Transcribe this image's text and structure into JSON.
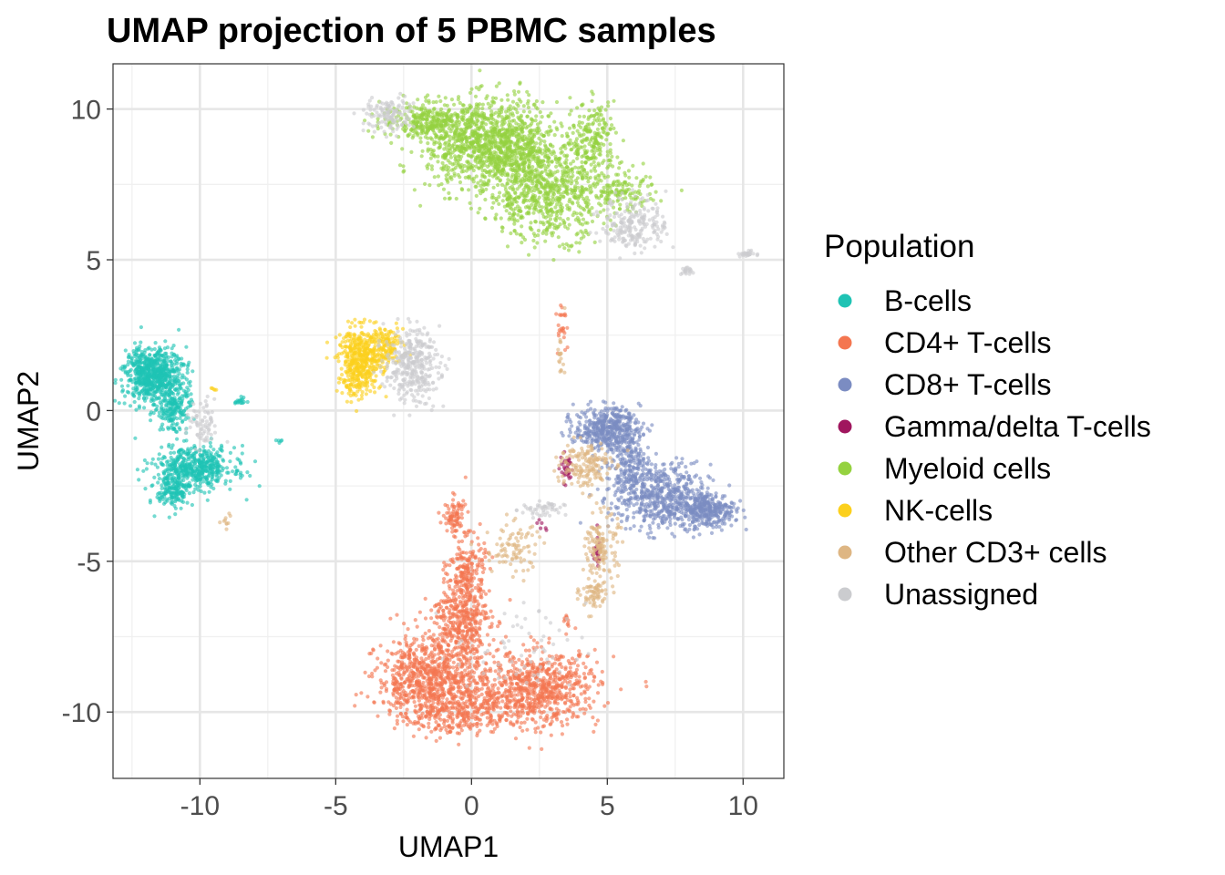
{
  "chart_data": {
    "type": "scatter",
    "title": "UMAP projection of 5 PBMC samples",
    "xlabel": "UMAP1",
    "ylabel": "UMAP2",
    "xlim": [
      -13.2,
      11.5
    ],
    "ylim": [
      -12.2,
      11.5
    ],
    "x_ticks": [
      -10,
      -5,
      0,
      5,
      10
    ],
    "y_ticks": [
      10,
      5,
      0,
      -5,
      -10
    ],
    "x_tick_labels": [
      "-10",
      "-5",
      "0",
      "5",
      "10"
    ],
    "y_tick_labels": [
      "10",
      "5",
      "0",
      "-5",
      "-10"
    ],
    "grid": true,
    "legend": {
      "title": "Population",
      "placement": "right",
      "entries": [
        {
          "name": "B-cells",
          "color": "#1fc3b4"
        },
        {
          "name": "CD4+ T-cells",
          "color": "#f47650"
        },
        {
          "name": "CD8+ T-cells",
          "color": "#7b8cc2"
        },
        {
          "name": "Gamma/delta T-cells",
          "color": "#a0165e"
        },
        {
          "name": "Myeloid cells",
          "color": "#95d240"
        },
        {
          "name": "NK-cells",
          "color": "#fcd01d"
        },
        {
          "name": "Other CD3+ cells",
          "color": "#deb683"
        },
        {
          "name": "Unassigned",
          "color": "#cbcccf"
        }
      ]
    },
    "series": [
      {
        "name": "B-cells",
        "color": "#1fc3b4",
        "clusters": [
          {
            "cx": -11.7,
            "cy": 1.2,
            "sx": 0.55,
            "sy": 0.45,
            "n": 700
          },
          {
            "cx": -11.0,
            "cy": 0.1,
            "sx": 0.3,
            "sy": 0.4,
            "n": 200
          },
          {
            "cx": -10.2,
            "cy": -1.9,
            "sx": 0.75,
            "sy": 0.35,
            "n": 500
          },
          {
            "cx": -11.0,
            "cy": -2.7,
            "sx": 0.3,
            "sy": 0.3,
            "n": 150
          },
          {
            "cx": -8.5,
            "cy": 0.3,
            "sx": 0.1,
            "sy": 0.06,
            "n": 18
          },
          {
            "cx": -7.1,
            "cy": -1.0,
            "sx": 0.06,
            "sy": 0.03,
            "n": 5
          }
        ]
      },
      {
        "name": "CD4+ T-cells",
        "color": "#f47650",
        "clusters": [
          {
            "cx": -1.5,
            "cy": -8.9,
            "sx": 1.0,
            "sy": 0.7,
            "n": 800
          },
          {
            "cx": 2.5,
            "cy": -9.2,
            "sx": 1.1,
            "sy": 0.6,
            "n": 700
          },
          {
            "cx": 0.0,
            "cy": -9.9,
            "sx": 1.4,
            "sy": 0.4,
            "n": 350
          },
          {
            "cx": -0.4,
            "cy": -7.0,
            "sx": 0.55,
            "sy": 0.6,
            "n": 350
          },
          {
            "cx": -0.2,
            "cy": -5.4,
            "sx": 0.35,
            "sy": 0.6,
            "n": 220
          },
          {
            "cx": -0.6,
            "cy": -3.5,
            "sx": 0.2,
            "sy": 0.3,
            "n": 80
          },
          {
            "cx": 3.3,
            "cy": 3.0,
            "sx": 0.1,
            "sy": 0.4,
            "n": 25
          },
          {
            "cx": 3.5,
            "cy": -7.0,
            "sx": 0.08,
            "sy": 0.15,
            "n": 12
          }
        ]
      },
      {
        "name": "CD8+ T-cells",
        "color": "#7b8cc2",
        "clusters": [
          {
            "cx": 5.0,
            "cy": -0.6,
            "sx": 0.6,
            "sy": 0.35,
            "n": 450
          },
          {
            "cx": 7.0,
            "cy": -2.9,
            "sx": 0.9,
            "sy": 0.55,
            "n": 550
          },
          {
            "cx": 8.7,
            "cy": -3.3,
            "sx": 0.5,
            "sy": 0.3,
            "n": 300
          },
          {
            "cx": 5.8,
            "cy": -1.8,
            "sx": 0.4,
            "sy": 0.5,
            "n": 200
          }
        ]
      },
      {
        "name": "Gamma/delta T-cells",
        "color": "#a0165e",
        "clusters": [
          {
            "cx": 3.5,
            "cy": -1.9,
            "sx": 0.12,
            "sy": 0.25,
            "n": 35
          },
          {
            "cx": 4.6,
            "cy": -4.7,
            "sx": 0.08,
            "sy": 0.25,
            "n": 25
          },
          {
            "cx": 2.6,
            "cy": -3.8,
            "sx": 0.1,
            "sy": 0.1,
            "n": 6
          }
        ]
      },
      {
        "name": "Myeloid cells",
        "color": "#95d240",
        "clusters": [
          {
            "cx": 0.8,
            "cy": 8.8,
            "sx": 1.2,
            "sy": 0.75,
            "n": 1200
          },
          {
            "cx": 2.8,
            "cy": 7.2,
            "sx": 1.1,
            "sy": 0.75,
            "n": 700
          },
          {
            "cx": -1.5,
            "cy": 9.6,
            "sx": 0.9,
            "sy": 0.3,
            "n": 300
          },
          {
            "cx": 4.5,
            "cy": 9.0,
            "sx": 0.4,
            "sy": 0.6,
            "n": 200
          },
          {
            "cx": 5.6,
            "cy": 7.2,
            "sx": 0.6,
            "sy": 0.3,
            "n": 120
          },
          {
            "cx": -1.0,
            "cy": 8.4,
            "sx": 0.06,
            "sy": 0.08,
            "n": 10
          }
        ]
      },
      {
        "name": "NK-cells",
        "color": "#fcd01d",
        "clusters": [
          {
            "cx": -4.1,
            "cy": 1.6,
            "sx": 0.4,
            "sy": 0.55,
            "n": 450
          },
          {
            "cx": -3.2,
            "cy": 2.2,
            "sx": 0.35,
            "sy": 0.3,
            "n": 150
          },
          {
            "cx": -9.5,
            "cy": 0.7,
            "sx": 0.05,
            "sy": 0.05,
            "n": 5
          }
        ]
      },
      {
        "name": "Other CD3+ cells",
        "color": "#deb683",
        "clusters": [
          {
            "cx": 4.1,
            "cy": -1.8,
            "sx": 0.5,
            "sy": 0.4,
            "n": 160
          },
          {
            "cx": 4.8,
            "cy": -4.5,
            "sx": 0.3,
            "sy": 0.55,
            "n": 140
          },
          {
            "cx": 4.5,
            "cy": -6.1,
            "sx": 0.25,
            "sy": 0.3,
            "n": 70
          },
          {
            "cx": 1.5,
            "cy": -4.6,
            "sx": 0.5,
            "sy": 0.45,
            "n": 90
          },
          {
            "cx": 3.3,
            "cy": 1.9,
            "sx": 0.07,
            "sy": 0.35,
            "n": 18
          },
          {
            "cx": -9.0,
            "cy": -3.6,
            "sx": 0.1,
            "sy": 0.15,
            "n": 10
          }
        ]
      },
      {
        "name": "Unassigned",
        "color": "#cbcccf",
        "clusters": [
          {
            "cx": -2.2,
            "cy": 1.5,
            "sx": 0.5,
            "sy": 0.6,
            "n": 350
          },
          {
            "cx": 6.0,
            "cy": 6.2,
            "sx": 0.6,
            "sy": 0.45,
            "n": 220
          },
          {
            "cx": -3.0,
            "cy": 9.8,
            "sx": 0.45,
            "sy": 0.3,
            "n": 120
          },
          {
            "cx": -9.9,
            "cy": -0.5,
            "sx": 0.3,
            "sy": 0.4,
            "n": 70
          },
          {
            "cx": 2.6,
            "cy": -3.3,
            "sx": 0.4,
            "sy": 0.15,
            "n": 50
          },
          {
            "cx": 10.1,
            "cy": 5.2,
            "sx": 0.15,
            "sy": 0.05,
            "n": 25
          },
          {
            "cx": 7.9,
            "cy": 4.6,
            "sx": 0.1,
            "sy": 0.08,
            "n": 20
          },
          {
            "cx": 1.8,
            "cy": -8.0,
            "sx": 1.2,
            "sy": 0.8,
            "n": 60
          }
        ]
      }
    ]
  }
}
